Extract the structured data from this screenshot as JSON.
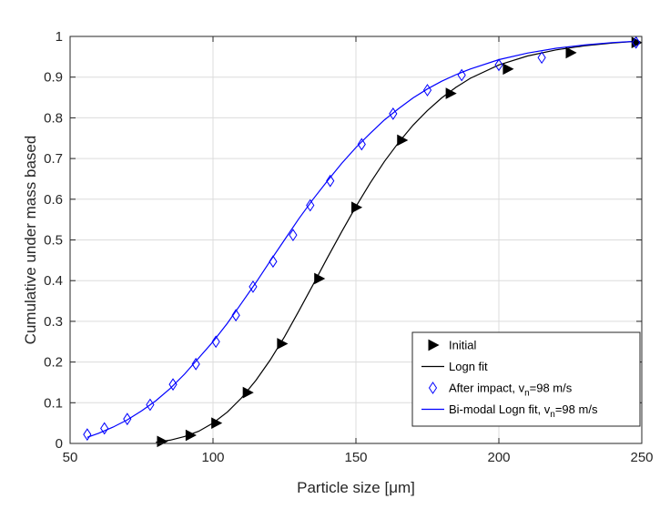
{
  "chart_data": {
    "type": "line",
    "title": "",
    "xlabel": "Particle size [μm]",
    "ylabel": "Cumulative under mass based",
    "xlim": [
      50,
      250
    ],
    "ylim": [
      0,
      1
    ],
    "xticks": [
      "50",
      "100",
      "150",
      "200",
      "250"
    ],
    "yticks": [
      "0",
      "0.1",
      "0.2",
      "0.3",
      "0.4",
      "0.5",
      "0.6",
      "0.7",
      "0.8",
      "0.9",
      "1"
    ],
    "grid": true,
    "legend_position": "bottom-right",
    "series": [
      {
        "name": "Initial",
        "kind": "marker",
        "marker": "triangle-right",
        "color": "#000000",
        "x": [
          82,
          92,
          101,
          112,
          124,
          137,
          150,
          166,
          183,
          203,
          225,
          248
        ],
        "y": [
          0.005,
          0.02,
          0.05,
          0.125,
          0.245,
          0.405,
          0.58,
          0.745,
          0.86,
          0.92,
          0.96,
          0.985
        ]
      },
      {
        "name": "Logn fit",
        "kind": "line",
        "color": "#000000",
        "x": [
          80,
          85,
          90,
          95,
          100,
          105,
          110,
          115,
          120,
          125,
          130,
          135,
          140,
          145,
          150,
          155,
          160,
          165,
          170,
          175,
          180,
          185,
          190,
          200,
          210,
          220,
          230,
          240,
          248
        ],
        "y": [
          0.003,
          0.008,
          0.017,
          0.03,
          0.05,
          0.077,
          0.112,
          0.155,
          0.205,
          0.262,
          0.325,
          0.39,
          0.456,
          0.52,
          0.582,
          0.64,
          0.693,
          0.74,
          0.782,
          0.818,
          0.849,
          0.875,
          0.897,
          0.93,
          0.952,
          0.967,
          0.977,
          0.984,
          0.988
        ]
      },
      {
        "name": "After impact, v_n=98 m/s",
        "label_main": "After impact, v",
        "label_sub": "n",
        "label_tail": "=98 m/s",
        "kind": "marker",
        "marker": "diamond",
        "color": "#0000ff",
        "x": [
          56,
          62,
          70,
          78,
          86,
          94,
          101,
          108,
          114,
          121,
          128,
          134,
          141,
          152,
          163,
          175,
          187,
          200,
          215,
          248
        ],
        "y": [
          0.022,
          0.037,
          0.06,
          0.095,
          0.145,
          0.195,
          0.25,
          0.315,
          0.385,
          0.447,
          0.512,
          0.585,
          0.645,
          0.735,
          0.81,
          0.868,
          0.905,
          0.93,
          0.948,
          0.985
        ]
      },
      {
        "name": "Bi-modal Logn fit, v_n=98 m/s",
        "label_main": "Bi-modal Logn fit, v",
        "label_sub": "n",
        "label_tail": "=98 m/s",
        "kind": "line",
        "color": "#0000ff",
        "x": [
          56,
          60,
          65,
          70,
          75,
          80,
          85,
          90,
          95,
          100,
          105,
          110,
          115,
          120,
          125,
          130,
          135,
          140,
          145,
          150,
          155,
          160,
          165,
          170,
          175,
          180,
          185,
          190,
          200,
          210,
          220,
          230,
          240,
          248
        ],
        "y": [
          0.015,
          0.025,
          0.04,
          0.058,
          0.08,
          0.105,
          0.135,
          0.17,
          0.21,
          0.25,
          0.295,
          0.345,
          0.395,
          0.448,
          0.5,
          0.552,
          0.6,
          0.645,
          0.688,
          0.727,
          0.762,
          0.795,
          0.823,
          0.849,
          0.871,
          0.89,
          0.906,
          0.92,
          0.943,
          0.959,
          0.971,
          0.979,
          0.985,
          0.988
        ]
      }
    ]
  }
}
